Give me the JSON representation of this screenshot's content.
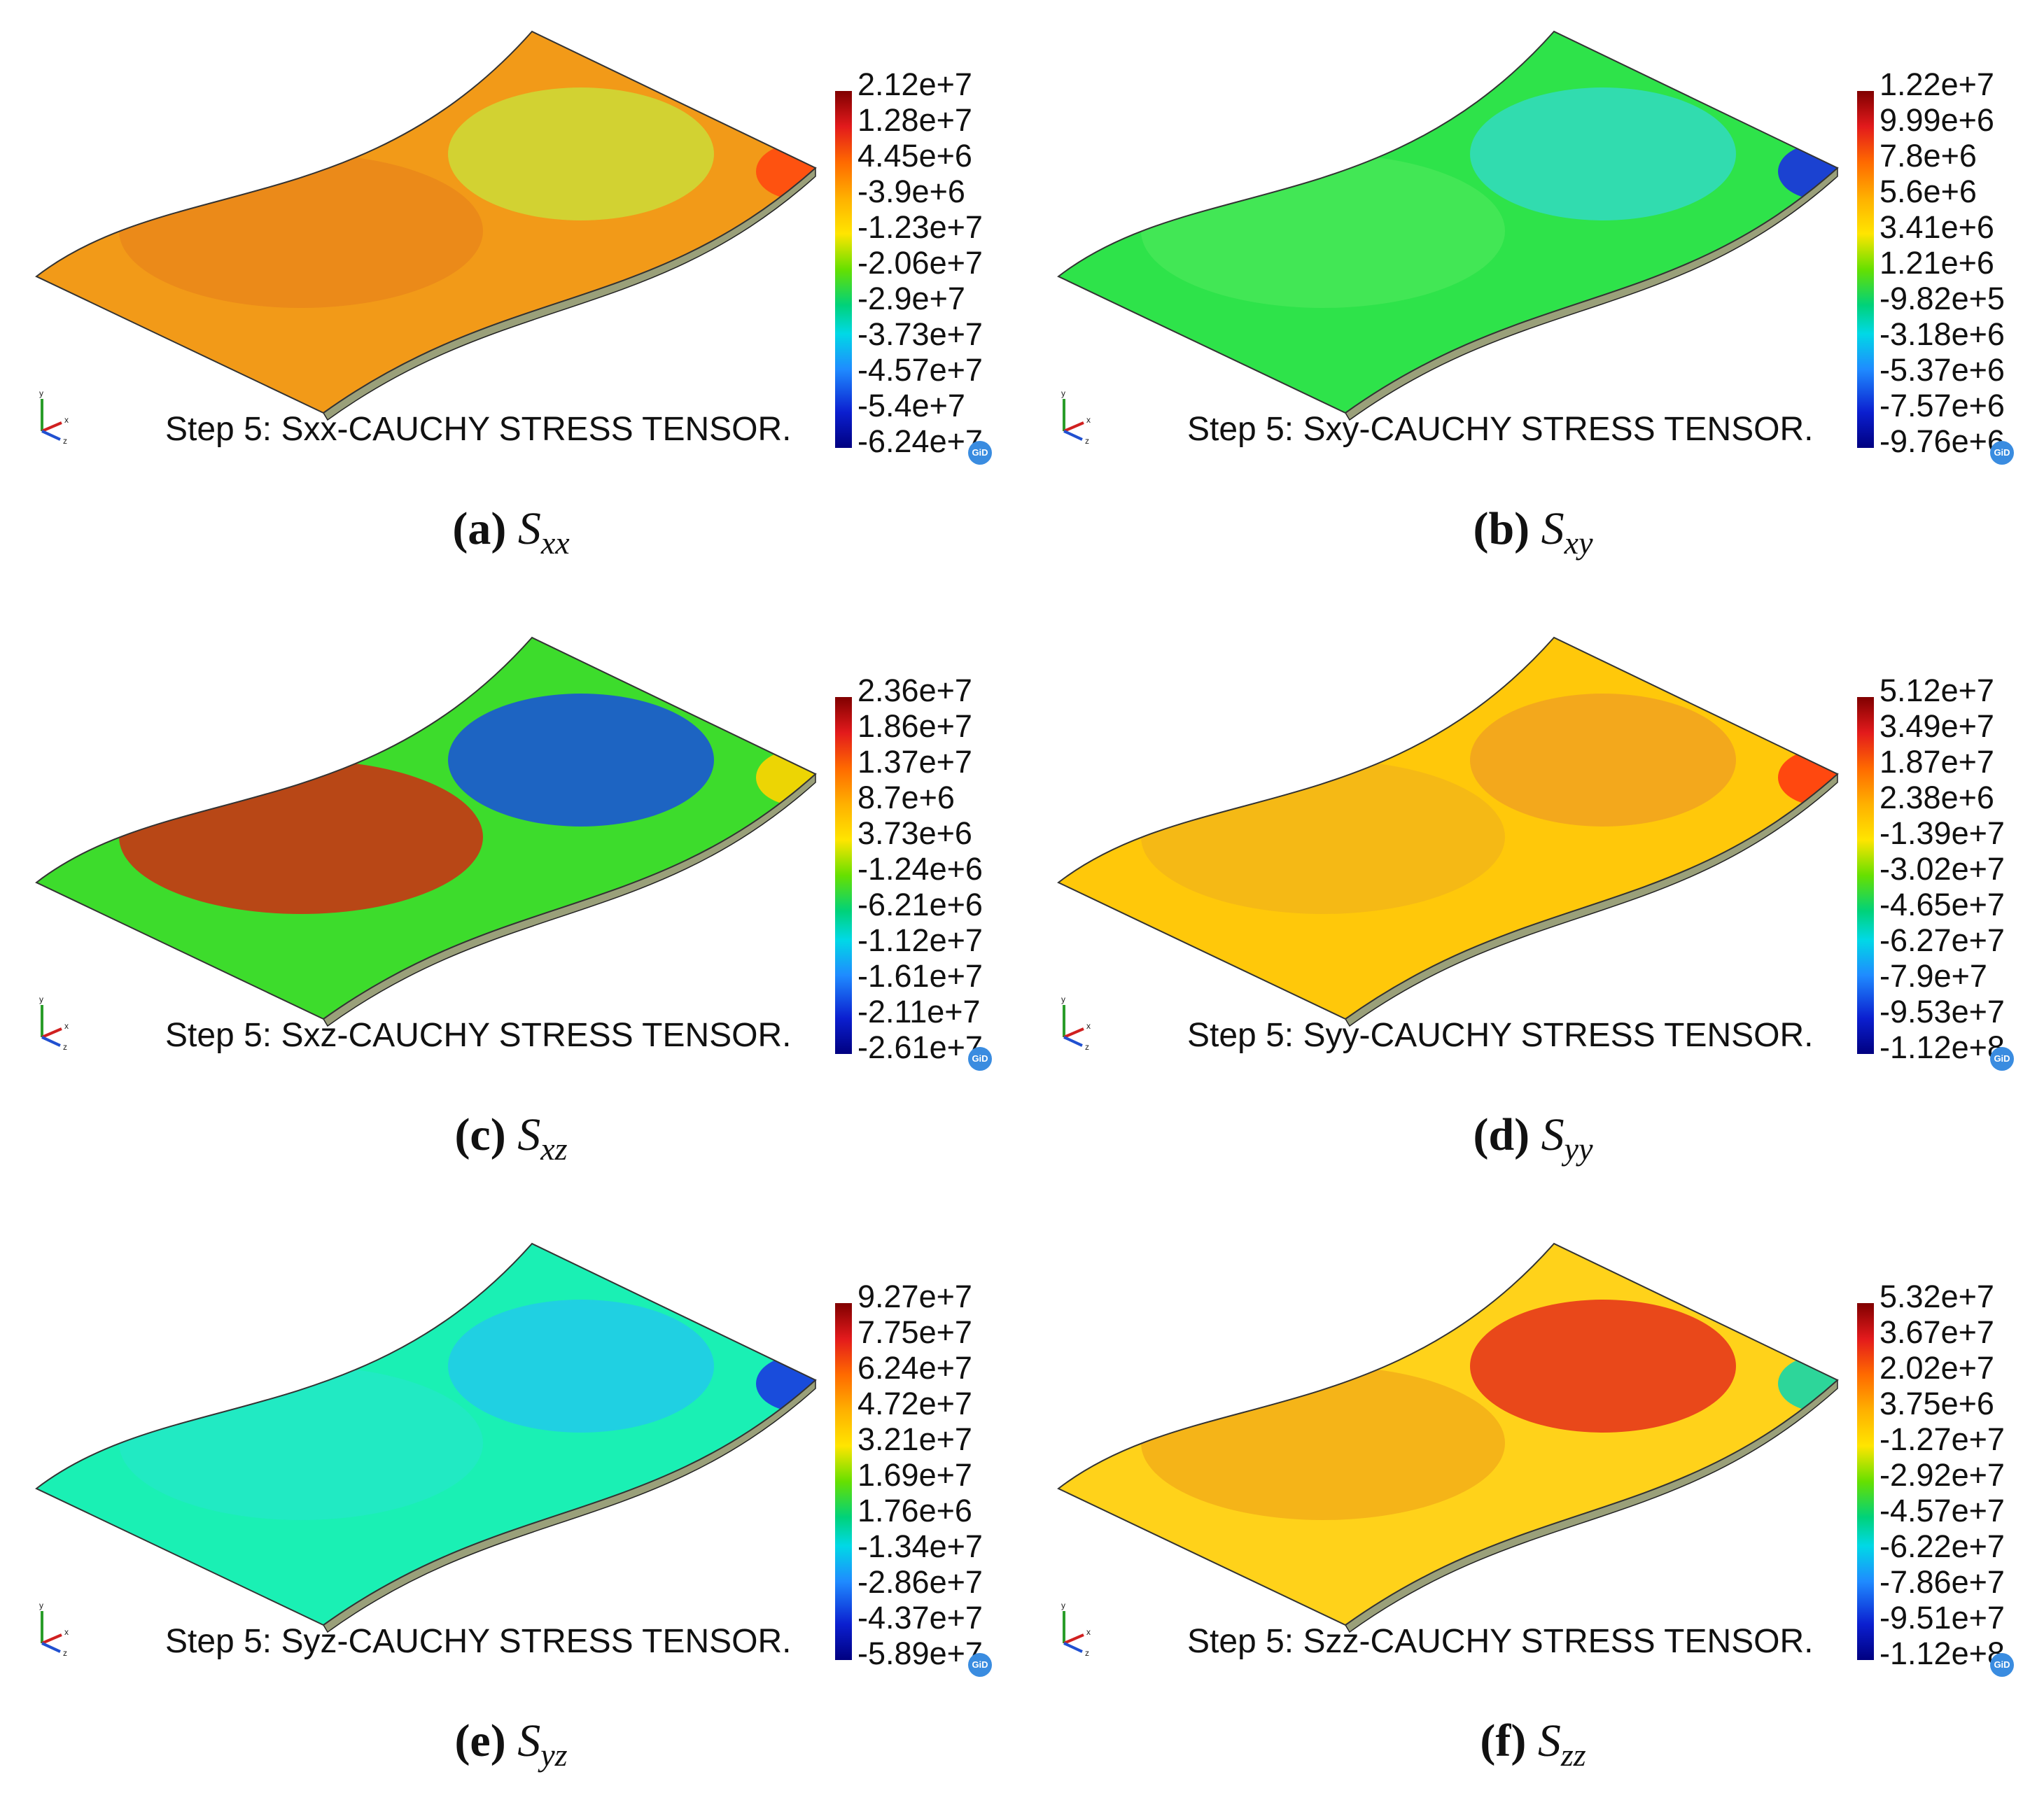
{
  "panels": [
    {
      "id": "a",
      "step_label": "Step 5: Sxx-CAUCHY STRESS TENSOR.",
      "legend": [
        "2.12e+7",
        "1.28e+7",
        "4.45e+6",
        "-3.9e+6",
        "-1.23e+7",
        "-2.06e+7",
        "-2.9e+7",
        "-3.73e+7",
        "-4.57e+7",
        "-5.4e+7",
        "-6.24e+7"
      ],
      "caption_letter": "(a)",
      "caption_symbol": "S",
      "caption_sub": "xx",
      "colors": {
        "base": "#f29a18",
        "accent1": "#e8841a",
        "accent2": "#c9e03a",
        "edge": "#ff4a10"
      }
    },
    {
      "id": "b",
      "step_label": "Step 5: Sxy-CAUCHY STRESS TENSOR.",
      "legend": [
        "1.22e+7",
        "9.99e+6",
        "7.8e+6",
        "5.6e+6",
        "3.41e+6",
        "1.21e+6",
        "-9.82e+5",
        "-3.18e+6",
        "-5.37e+6",
        "-7.57e+6",
        "-9.76e+6"
      ],
      "caption_letter": "(b)",
      "caption_symbol": "S",
      "caption_sub": "xy",
      "colors": {
        "base": "#2ee34a",
        "accent1": "#49e85a",
        "accent2": "#32d9c8",
        "edge": "#1a30e0"
      }
    },
    {
      "id": "c",
      "step_label": "Step 5: Sxz-CAUCHY STRESS TENSOR.",
      "legend": [
        "2.36e+7",
        "1.86e+7",
        "1.37e+7",
        "8.7e+6",
        "3.73e+6",
        "-1.24e+6",
        "-6.21e+6",
        "-1.12e+7",
        "-1.61e+7",
        "-2.11e+7",
        "-2.61e+7"
      ],
      "caption_letter": "(c)",
      "caption_symbol": "S",
      "caption_sub": "xz",
      "colors": {
        "base": "#3ddc2c",
        "accent1": "#e2150f",
        "accent2": "#1546e8",
        "edge": "#ffd400"
      }
    },
    {
      "id": "d",
      "step_label": "Step 5: Syy-CAUCHY STRESS TENSOR.",
      "legend": [
        "5.12e+7",
        "3.49e+7",
        "1.87e+7",
        "2.38e+6",
        "-1.39e+7",
        "-3.02e+7",
        "-4.65e+7",
        "-6.27e+7",
        "-7.9e+7",
        "-9.53e+7",
        "-1.12e+8"
      ],
      "caption_letter": "(d)",
      "caption_symbol": "S",
      "caption_sub": "yy",
      "colors": {
        "base": "#ffc80a",
        "accent1": "#f2b41a",
        "accent2": "#f0a020",
        "edge": "#ff3a10"
      }
    },
    {
      "id": "e",
      "step_label": "Step 5: Syz-CAUCHY STRESS TENSOR.",
      "legend": [
        "9.27e+7",
        "7.75e+7",
        "6.24e+7",
        "4.72e+7",
        "3.21e+7",
        "1.69e+7",
        "1.76e+6",
        "-1.34e+7",
        "-2.86e+7",
        "-4.37e+7",
        "-5.89e+7"
      ],
      "caption_letter": "(e)",
      "caption_symbol": "S",
      "caption_sub": "yz",
      "colors": {
        "base": "#1af0b4",
        "accent1": "#24e8c8",
        "accent2": "#22c8ee",
        "edge": "#1a3ae0"
      }
    },
    {
      "id": "f",
      "step_label": "Step 5: Szz-CAUCHY STRESS TENSOR.",
      "legend": [
        "5.32e+7",
        "3.67e+7",
        "2.02e+7",
        "3.75e+6",
        "-1.27e+7",
        "-2.92e+7",
        "-4.57e+7",
        "-6.22e+7",
        "-7.86e+7",
        "-9.51e+7",
        "-1.12e+8"
      ],
      "caption_letter": "(f)",
      "caption_symbol": "S",
      "caption_sub": "zz",
      "colors": {
        "base": "#ffd21a",
        "accent1": "#f2aa18",
        "accent2": "#e3261a",
        "edge": "#16d6a8"
      }
    }
  ],
  "logo_text": "GiD",
  "axis_labels": {
    "y": "y",
    "x": "x",
    "z": "z"
  }
}
